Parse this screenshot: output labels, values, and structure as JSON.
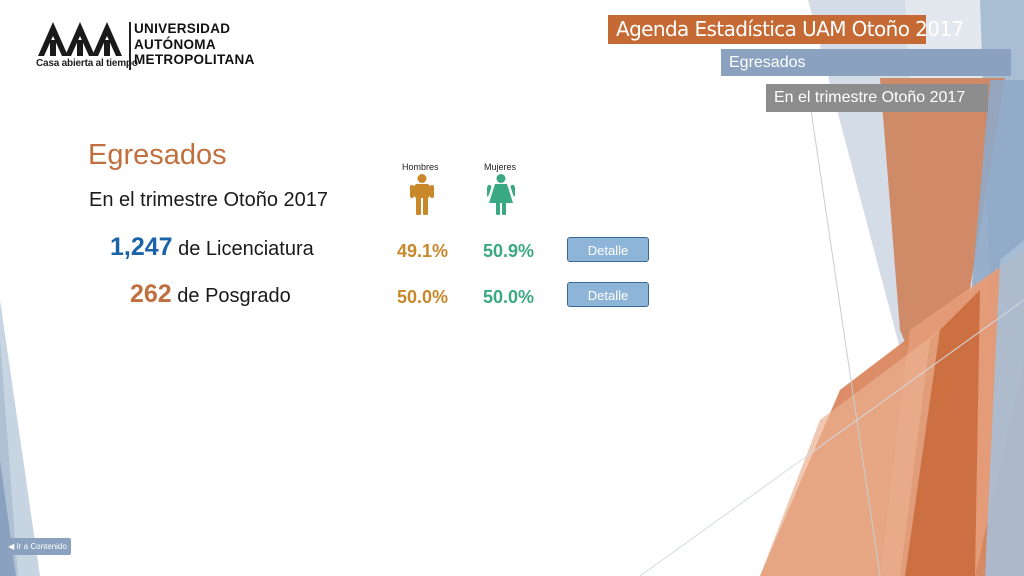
{
  "logo": {
    "tagline": "Casa abierta al tiempo",
    "name_lines": [
      "UNIVERSIDAD",
      "AUTÓNOMA",
      "METROPOLITANA"
    ]
  },
  "header": {
    "title": "Agenda Estadística UAM  Otoño 2017",
    "section": "Egresados",
    "period": "En el trimestre Otoño 2017"
  },
  "main": {
    "title": "Egresados",
    "period": "En el trimestre Otoño 2017",
    "gender_labels": {
      "male": "Hombres",
      "female": "Mujeres"
    },
    "rows": [
      {
        "count": "1,247",
        "label": "de Licenciatura",
        "male_pct": "49.1%",
        "female_pct": "50.9%",
        "button": "Detalle"
      },
      {
        "count": "262",
        "label": "de Posgrado",
        "male_pct": "50.0%",
        "female_pct": "50.0%",
        "button": "Detalle"
      }
    ]
  },
  "nav": {
    "back_label": "Ir a Contenido"
  },
  "colors": {
    "accent_orange": "#c56a34",
    "accent_blue": "#8aa2bf",
    "gray": "#8d8d8d",
    "male": "#c8882a",
    "female": "#3aa882",
    "count_blue": "#1a63a8"
  }
}
